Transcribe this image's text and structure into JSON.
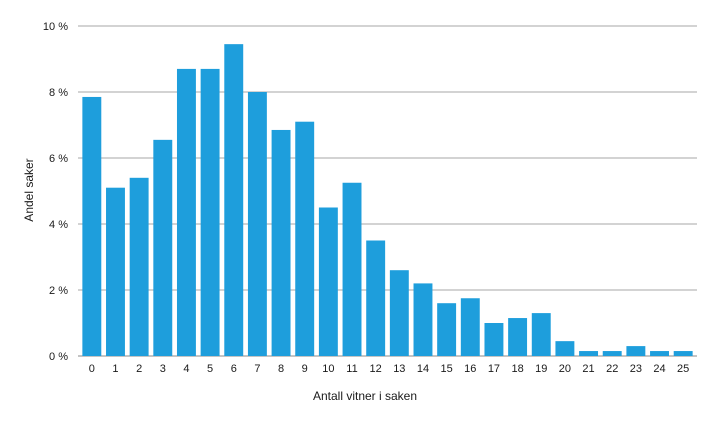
{
  "chart_data": {
    "type": "bar",
    "title": "",
    "xlabel": "Antall vitner i saken",
    "ylabel": "Andel saker",
    "ylim": [
      0,
      10
    ],
    "y_ticks": [
      "0 %",
      "2 %",
      "4 %",
      "6 %",
      "8 %",
      "10 %"
    ],
    "y_tick_values": [
      0,
      2,
      4,
      6,
      8,
      10
    ],
    "grid": "horizontal",
    "categories": [
      "0",
      "1",
      "2",
      "3",
      "4",
      "5",
      "6",
      "7",
      "8",
      "9",
      "10",
      "11",
      "12",
      "13",
      "14",
      "15",
      "16",
      "17",
      "18",
      "19",
      "20",
      "21",
      "22",
      "23",
      "24",
      "25"
    ],
    "values": [
      7.85,
      5.1,
      5.4,
      6.55,
      8.7,
      8.7,
      9.45,
      8.0,
      6.85,
      7.1,
      4.5,
      5.25,
      3.5,
      2.6,
      2.2,
      1.6,
      1.75,
      1.0,
      1.15,
      1.3,
      0.45,
      0.15,
      0.15,
      0.3,
      0.15,
      0.15
    ],
    "bar_color": "#1e9edc",
    "grid_color": "#8a8a8a"
  }
}
